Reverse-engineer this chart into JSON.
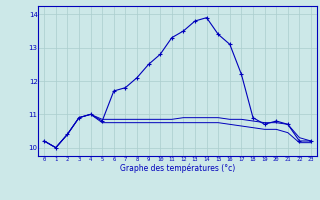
{
  "xlabel": "Graphe des températures (°c)",
  "hours": [
    0,
    1,
    2,
    3,
    4,
    5,
    6,
    7,
    8,
    9,
    10,
    11,
    12,
    13,
    14,
    15,
    16,
    17,
    18,
    19,
    20,
    21,
    22,
    23
  ],
  "line1": [
    10.2,
    10.0,
    10.4,
    10.9,
    11.0,
    10.8,
    11.7,
    11.8,
    12.1,
    12.5,
    12.8,
    13.3,
    13.5,
    13.8,
    13.9,
    13.4,
    13.1,
    12.2,
    10.9,
    10.7,
    10.8,
    10.7,
    10.2,
    10.2
  ],
  "line2": [
    10.2,
    10.0,
    10.4,
    10.9,
    11.0,
    10.85,
    10.85,
    10.85,
    10.85,
    10.85,
    10.85,
    10.85,
    10.9,
    10.9,
    10.9,
    10.9,
    10.85,
    10.85,
    10.8,
    10.75,
    10.75,
    10.7,
    10.3,
    10.2
  ],
  "line3": [
    10.2,
    10.0,
    10.4,
    10.9,
    11.0,
    10.75,
    10.75,
    10.75,
    10.75,
    10.75,
    10.75,
    10.75,
    10.75,
    10.75,
    10.75,
    10.75,
    10.7,
    10.65,
    10.6,
    10.55,
    10.55,
    10.45,
    10.15,
    10.15
  ],
  "bg_color": "#cce8e8",
  "line_color": "#0000bb",
  "grid_color": "#aacece",
  "axis_color": "#0000bb",
  "ylim": [
    9.75,
    14.25
  ],
  "yticks": [
    10,
    11,
    12,
    13,
    14
  ],
  "xlim": [
    -0.5,
    23.5
  ]
}
